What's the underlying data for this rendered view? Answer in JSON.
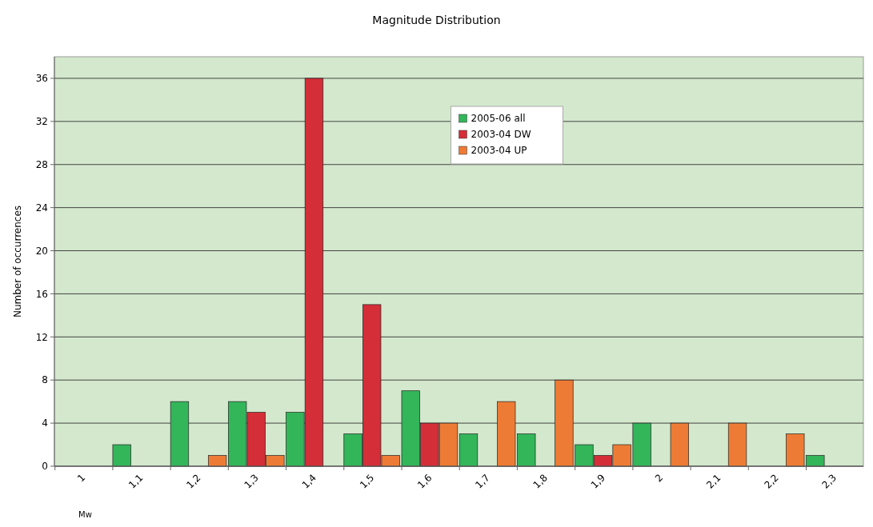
{
  "chart_data": {
    "type": "bar",
    "title": "Magnitude Distribution",
    "xlabel": "Mw",
    "ylabel": "Number of occurrences",
    "categories": [
      "1",
      "1,1",
      "1,2",
      "1,3",
      "1,4",
      "1,5",
      "1,6",
      "1,7",
      "1,8",
      "1,9",
      "2",
      "2,1",
      "2,2",
      "2,3"
    ],
    "series": [
      {
        "name": "2005-06 all",
        "color": "#33b55a",
        "values": [
          null,
          2,
          6,
          6,
          5,
          3,
          7,
          3,
          3,
          2,
          4,
          null,
          null,
          1
        ]
      },
      {
        "name": "2003-04 DW",
        "color": "#d42e38",
        "values": [
          null,
          null,
          null,
          5,
          36,
          15,
          4,
          null,
          null,
          1,
          null,
          null,
          null,
          null
        ]
      },
      {
        "name": "2003-04 UP",
        "color": "#ee7b35",
        "values": [
          null,
          null,
          1,
          1,
          null,
          1,
          4,
          6,
          8,
          2,
          4,
          4,
          3,
          null
        ]
      }
    ],
    "ylim": [
      0,
      38
    ],
    "yticks": [
      0,
      4,
      8,
      12,
      16,
      20,
      24,
      28,
      32,
      36
    ],
    "grid": "y",
    "legend": "top"
  }
}
